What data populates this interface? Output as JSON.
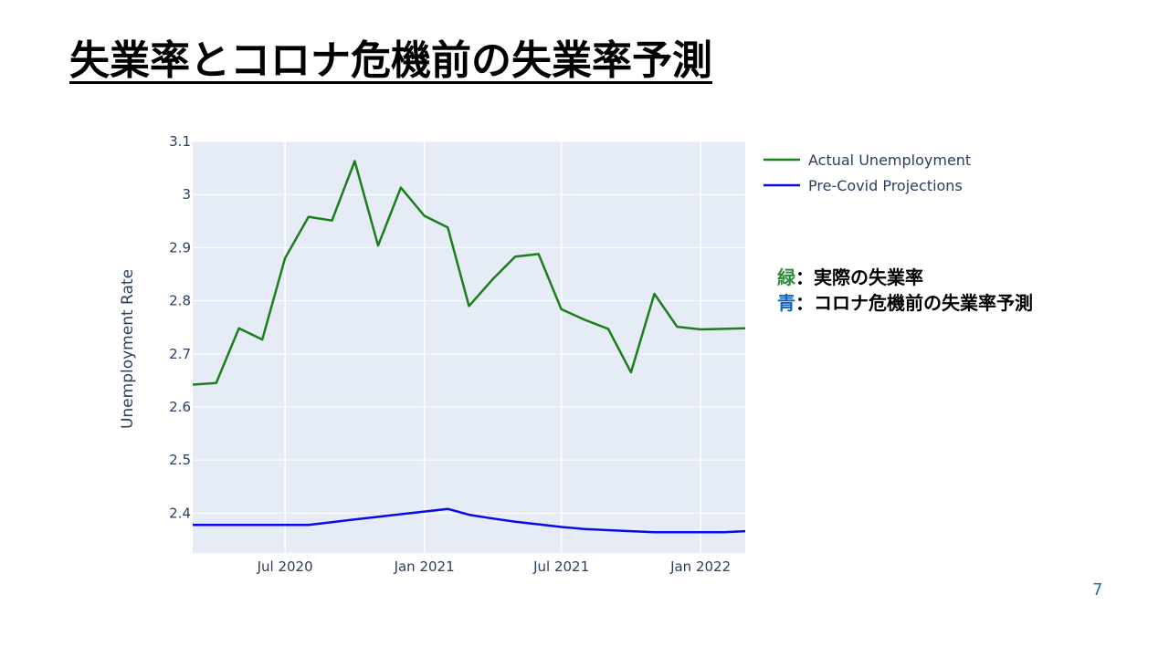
{
  "slide": {
    "title": "失業率とコロナ危機前の失業率予測",
    "page_number": "7"
  },
  "notes": [
    {
      "key": "緑",
      "text": "：実際の失業率"
    },
    {
      "key": "青",
      "text": "：コロナ危機前の失業率予測"
    }
  ],
  "colors": {
    "actual": "#1a7f1a",
    "projection": "#0a0ae6",
    "plot_bg": "#e5ecf6",
    "axis_text": "#2a3f5f"
  },
  "chart_data": {
    "type": "line",
    "title": "",
    "xlabel": "",
    "ylabel": "Unemployment Rate",
    "ylim": [
      2.325,
      3.1
    ],
    "xlim": [
      "2020-03-01",
      "2022-03-01"
    ],
    "yticks": [
      "2.4",
      "2.5",
      "2.6",
      "2.7",
      "2.8",
      "2.9",
      "3",
      "3.1"
    ],
    "xticks": [
      {
        "date": "2020-07-01",
        "label": "Jul 2020"
      },
      {
        "date": "2021-01-01",
        "label": "Jan 2021"
      },
      {
        "date": "2021-07-01",
        "label": "Jul 2021"
      },
      {
        "date": "2022-01-01",
        "label": "Jan 2022"
      }
    ],
    "grid": true,
    "legend_position": "top-right",
    "series": [
      {
        "name": "Actual Unemployment",
        "color": "#1a7f1a",
        "x": [
          "2020-03-01",
          "2020-04-01",
          "2020-05-01",
          "2020-06-01",
          "2020-07-01",
          "2020-08-01",
          "2020-09-01",
          "2020-10-01",
          "2020-11-01",
          "2020-12-01",
          "2021-01-01",
          "2021-02-01",
          "2021-03-01",
          "2021-04-01",
          "2021-05-01",
          "2021-06-01",
          "2021-07-01",
          "2021-08-01",
          "2021-09-01",
          "2021-10-01",
          "2021-11-01",
          "2021-12-01",
          "2022-01-01",
          "2022-02-01",
          "2022-03-01"
        ],
        "y": [
          2.642,
          2.645,
          2.748,
          2.727,
          2.88,
          2.958,
          2.951,
          3.063,
          2.904,
          3.013,
          2.96,
          2.938,
          2.79,
          2.84,
          2.883,
          2.888,
          2.784,
          2.764,
          2.747,
          2.665,
          2.813,
          2.751,
          2.746,
          2.747,
          2.748
        ]
      },
      {
        "name": "Pre-Covid Projections",
        "color": "#0a0ae6",
        "x": [
          "2020-03-01",
          "2020-04-01",
          "2020-05-01",
          "2020-06-01",
          "2020-07-01",
          "2020-08-01",
          "2020-09-01",
          "2020-10-01",
          "2020-11-01",
          "2020-12-01",
          "2021-01-01",
          "2021-02-01",
          "2021-03-01",
          "2021-04-01",
          "2021-05-01",
          "2021-06-01",
          "2021-07-01",
          "2021-08-01",
          "2021-09-01",
          "2021-10-01",
          "2021-11-01",
          "2021-12-01",
          "2022-01-01",
          "2022-02-01",
          "2022-03-01"
        ],
        "y": [
          2.378,
          2.378,
          2.378,
          2.378,
          2.378,
          2.378,
          2.383,
          2.388,
          2.393,
          2.398,
          2.403,
          2.408,
          2.397,
          2.39,
          2.384,
          2.379,
          2.374,
          2.37,
          2.368,
          2.366,
          2.364,
          2.364,
          2.364,
          2.364,
          2.366
        ]
      }
    ]
  }
}
